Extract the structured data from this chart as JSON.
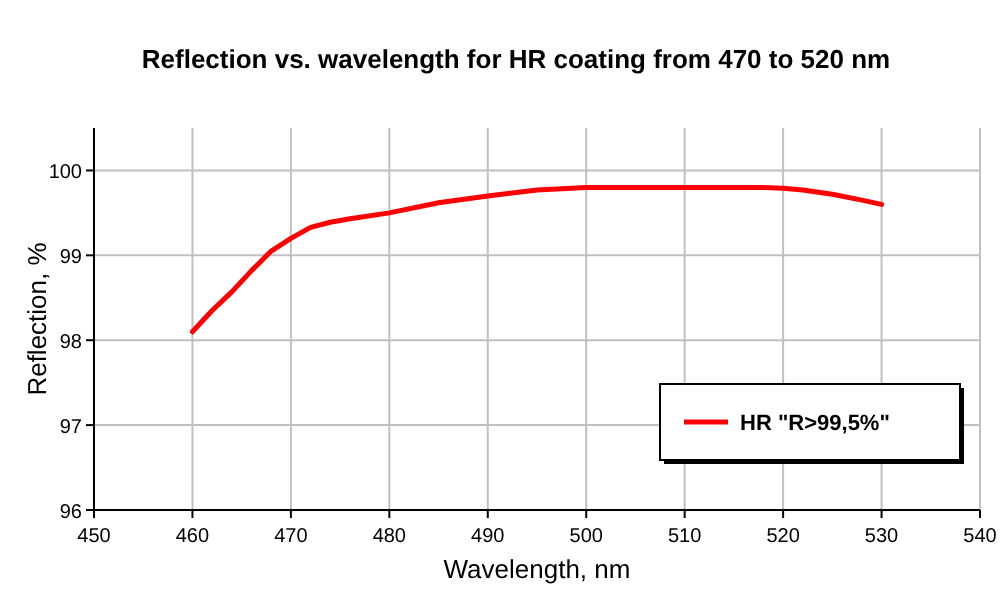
{
  "chart_data": {
    "type": "line",
    "title": "Reflection vs. wavelength for HR coating from 470 to 520 nm",
    "xlabel": "Wavelength, nm",
    "ylabel": "Reflection, %",
    "x": [
      460,
      462,
      464,
      466,
      468,
      470,
      472,
      474,
      476,
      480,
      485,
      490,
      495,
      500,
      510,
      518,
      520,
      522,
      525,
      528,
      530
    ],
    "series": [
      {
        "name": "HR \"R>99,5%\"",
        "color": "#ff0000",
        "values": [
          98.1,
          98.35,
          98.57,
          98.82,
          99.05,
          99.2,
          99.33,
          99.39,
          99.43,
          99.5,
          99.62,
          99.7,
          99.77,
          99.8,
          99.8,
          99.8,
          99.79,
          99.77,
          99.72,
          99.65,
          99.6
        ]
      }
    ],
    "xlim": [
      450,
      540
    ],
    "xticks": [
      450,
      460,
      470,
      480,
      490,
      500,
      510,
      520,
      530,
      540
    ],
    "ylim": [
      96,
      100.5
    ],
    "yticks": [
      96,
      97,
      98,
      99,
      100
    ],
    "grid": true,
    "legend": "bottom right",
    "marker": "none",
    "line_style": "solid"
  }
}
